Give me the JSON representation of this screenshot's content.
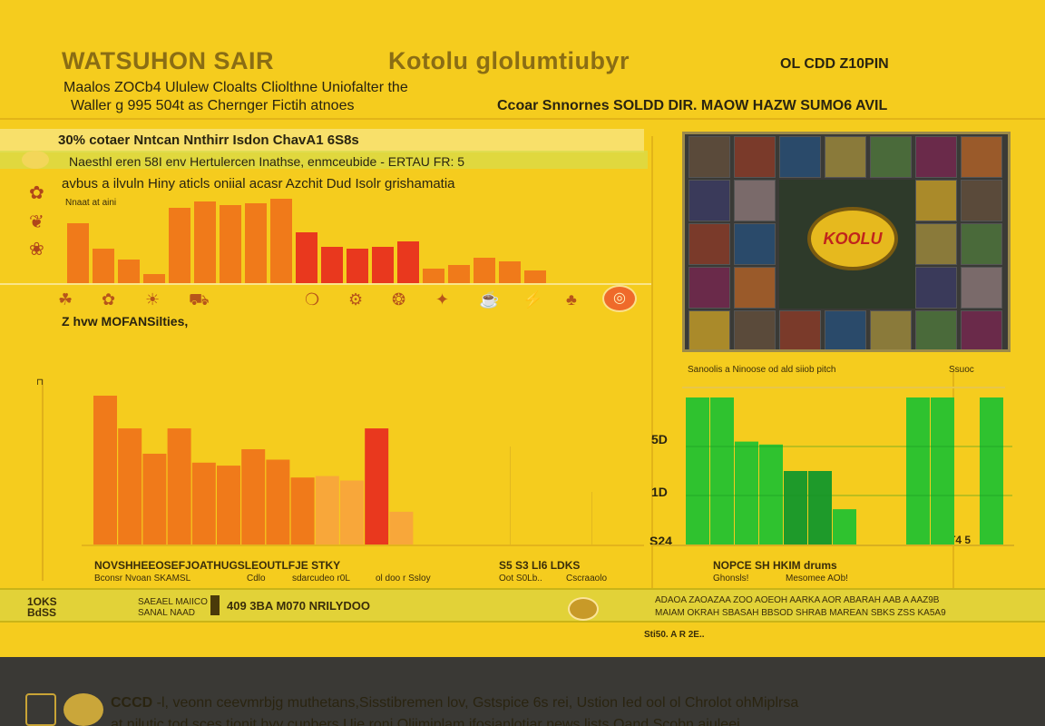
{
  "header": {
    "title_left": "WATSUHON SAIR",
    "title_center": "Kotolu glolumtiubyr",
    "corner_label": "OL CDD Z10PIN",
    "subtitle_line1": "Maalos ZOCb4 Ululew Cloalts Cliolthne Uniofalter the",
    "subtitle_line2": "Waller g 995 504t as Chernger Fictih atnoes",
    "subtitle_right": "Ccoar Snnornes SOLDD DIR. MAOW HAZW SUMO6 AVIL"
  },
  "top_panel": {
    "heading": "30% cotaer Nntcan Nnthirr Isdon ChavA1 6S8s",
    "line1": "Naesthl eren 58I env Hertulercen Inathse, enmceubide - ERTAU FR: 5",
    "line2": "avbus a ilvuln Hiny aticls oniial acasr Azchit Dud Isolr grishamatia",
    "axis_caption": "Nnaat at aini",
    "section_label": "Z hvw MOFANSilties,",
    "icon_names": [
      "leaf-icon",
      "flower-icon",
      "sun-icon",
      "cart-icon",
      "drop-icon",
      "gear-icon",
      "fruit-icon",
      "star-icon",
      "cup-icon",
      "bolt-icon",
      "tree-icon",
      "flag-icon",
      "record-icon"
    ]
  },
  "photo": {
    "alt_caption": "Sanoolis a Ninoose od ald siiob pitch",
    "badge": "KOOLU"
  },
  "bottom_left": {
    "xlabel_line1": "NOVSHHEEOSEFJOATHUGSLEOUTLFJE STKY",
    "xlabel_line2": "Bconsr Nvoan SKAMSL",
    "xlabel_line2b": "Cdlo",
    "xlabel_line2c": "sdarcudeo r0L",
    "xlabel_line2d": "ol doo r Ssloy",
    "xlabel_right1": "S5 S3 Ll6 LDKS",
    "xlabel_right2": "Oot S0Lb..",
    "xlabel_right3": "Cscraaolo"
  },
  "bottom_right": {
    "header_left": "Sanoolis a Ninoose od ald siiob pitch",
    "header_right": "Ssuoc",
    "tick_labels": [
      "5D",
      "1D",
      "S24"
    ],
    "corner_tick": "T4 5",
    "xlabel_line1": "NOPCE SH HKIM drums",
    "xlabel_line2": "Ghonsls!",
    "xlabel_line3": "Mesomee AOb!"
  },
  "ticker": {
    "left_label_1": "1OKS",
    "left_label_2": "BdSS",
    "mid_label_1": "SAEAEL MAIICO",
    "mid_label_2": "SANAL NAAD",
    "value": "409 3BA M070 NRILYDOO",
    "right_line1": "ADAOA ZAOAZAA ZOO AOEOH AARKA AOR ABARAH AAB A AAZ9B",
    "right_line2": "MAIAM OKRAH SBASAH BBSOD SHRAB MAREAN SBKS ZSS KA5A9",
    "date": "Sti50. A R 2E..",
    "coin_icon": "coin-icon"
  },
  "footer": {
    "line1_lead": "CCCD",
    "line1": "-l, veonn ceevmrbjg muthetans,Sisstibremen lov, Gstspice 6s rei, Ustion Ied ool ol Chrolot ohMiplrsa",
    "line2": "at nilutic tod sces tionit hyy cunbers Uie roni Olijmiplam ifosianlotiar news lists Oand Scobn aiuleei"
  },
  "colors": {
    "background": "#f5cc1e",
    "bar_orange": "#f07a1a",
    "bar_red": "#e9381e",
    "bar_green": "#2fc22f",
    "bar_dark_green": "#1e9a2a",
    "footer": "#3a3935"
  },
  "chart_data": [
    {
      "type": "bar",
      "id": "top-strip",
      "categories": [
        "1",
        "2",
        "3",
        "4",
        "5",
        "6",
        "7",
        "8",
        "9",
        "10",
        "11",
        "12",
        "13",
        "14",
        "15",
        "16",
        "17",
        "18",
        "19"
      ],
      "values": [
        68,
        40,
        28,
        12,
        85,
        92,
        88,
        90,
        95,
        58,
        42,
        40,
        42,
        48,
        18,
        22,
        30,
        26,
        16
      ],
      "ylim": [
        0,
        100
      ],
      "xlabel": "",
      "ylabel": ""
    },
    {
      "type": "bar",
      "id": "bottom-left",
      "categories": [
        "1",
        "2",
        "3",
        "4",
        "5",
        "6",
        "7",
        "8",
        "9",
        "10",
        "11",
        "12",
        "13"
      ],
      "values": [
        100,
        78,
        61,
        78,
        55,
        53,
        64,
        57,
        45,
        46,
        43,
        78,
        22
      ],
      "ylim": [
        0,
        100
      ],
      "xlabel": "",
      "ylabel": ""
    },
    {
      "type": "bar",
      "id": "bottom-right",
      "categories": [
        "1",
        "2",
        "3",
        "4",
        "5",
        "6",
        "7",
        "8",
        "9",
        "10",
        "11",
        "12",
        "13"
      ],
      "values": [
        100,
        100,
        70,
        68,
        50,
        50,
        24,
        0,
        0,
        100,
        100,
        0,
        100
      ],
      "ylim": [
        0,
        100
      ],
      "xlabel": "",
      "ylabel": ""
    }
  ]
}
